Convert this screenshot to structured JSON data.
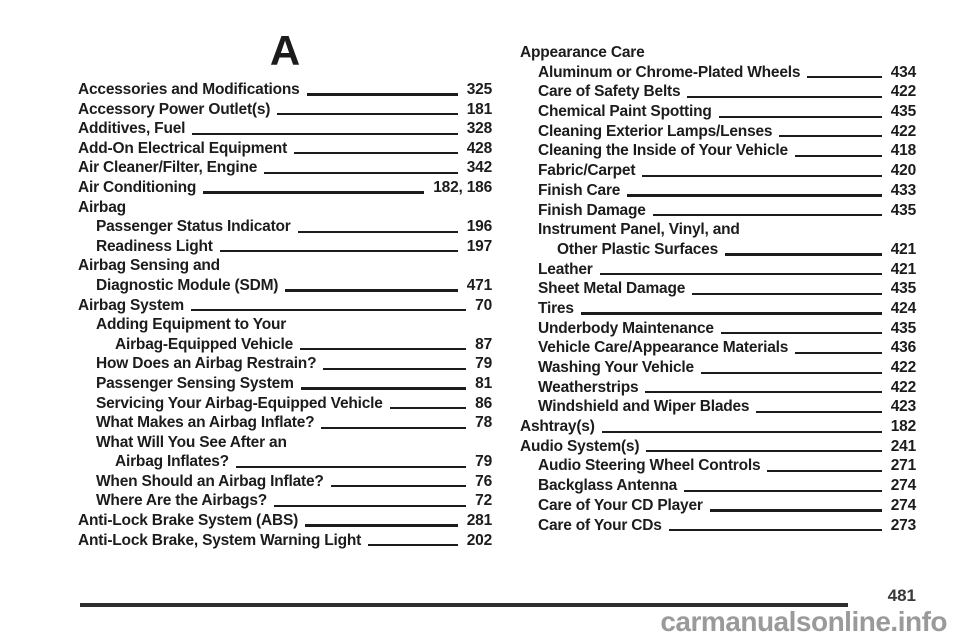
{
  "page": {
    "section_letter": "A",
    "page_number": "481",
    "watermark": "carmanualsonline.info"
  },
  "index": {
    "left_column": [
      {
        "label": "Accessories and Modifications",
        "page": "325",
        "indent": 0
      },
      {
        "label": "Accessory Power Outlet(s)",
        "page": "181",
        "indent": 0
      },
      {
        "label": "Additives, Fuel",
        "page": "328",
        "indent": 0
      },
      {
        "label": "Add-On Electrical Equipment",
        "page": "428",
        "indent": 0
      },
      {
        "label": "Air Cleaner/Filter, Engine",
        "page": "342",
        "indent": 0
      },
      {
        "label": "Air Conditioning",
        "page": "182, 186",
        "indent": 0
      },
      {
        "label": "Airbag",
        "page": null,
        "indent": 0
      },
      {
        "label": "Passenger Status Indicator",
        "page": "196",
        "indent": 1
      },
      {
        "label": "Readiness Light",
        "page": "197",
        "indent": 1
      },
      {
        "label": "Airbag Sensing and",
        "page": null,
        "indent": 0
      },
      {
        "label": "Diagnostic Module (SDM)",
        "page": "471",
        "indent": 1
      },
      {
        "label": "Airbag System",
        "page": "70",
        "indent": 0
      },
      {
        "label": "Adding Equipment to Your",
        "page": null,
        "indent": 1
      },
      {
        "label": "Airbag-Equipped Vehicle",
        "page": "87",
        "indent": 2
      },
      {
        "label": "How Does an Airbag Restrain?",
        "page": "79",
        "indent": 1
      },
      {
        "label": "Passenger Sensing System",
        "page": "81",
        "indent": 1
      },
      {
        "label": "Servicing Your Airbag-Equipped Vehicle",
        "page": "86",
        "indent": 1
      },
      {
        "label": "What Makes an Airbag Inflate?",
        "page": "78",
        "indent": 1
      },
      {
        "label": "What Will You See After an",
        "page": null,
        "indent": 1
      },
      {
        "label": "Airbag Inflates?",
        "page": "79",
        "indent": 2
      },
      {
        "label": "When Should an Airbag Inflate?",
        "page": "76",
        "indent": 1
      },
      {
        "label": "Where Are the Airbags?",
        "page": "72",
        "indent": 1
      },
      {
        "label": "Anti-Lock Brake System (ABS)",
        "page": "281",
        "indent": 0
      },
      {
        "label": "Anti-Lock Brake, System Warning Light",
        "page": "202",
        "indent": 0
      }
    ],
    "right_column": [
      {
        "label": "Appearance Care",
        "page": null,
        "indent": 0
      },
      {
        "label": "Aluminum or Chrome-Plated Wheels",
        "page": "434",
        "indent": 1
      },
      {
        "label": "Care of Safety Belts",
        "page": "422",
        "indent": 1
      },
      {
        "label": "Chemical Paint Spotting",
        "page": "435",
        "indent": 1
      },
      {
        "label": "Cleaning Exterior Lamps/Lenses",
        "page": "422",
        "indent": 1
      },
      {
        "label": "Cleaning the Inside of Your Vehicle",
        "page": "418",
        "indent": 1
      },
      {
        "label": "Fabric/Carpet",
        "page": "420",
        "indent": 1
      },
      {
        "label": "Finish Care",
        "page": "433",
        "indent": 1
      },
      {
        "label": "Finish Damage",
        "page": "435",
        "indent": 1
      },
      {
        "label": "Instrument Panel, Vinyl, and",
        "page": null,
        "indent": 1
      },
      {
        "label": "Other Plastic Surfaces",
        "page": "421",
        "indent": 2
      },
      {
        "label": "Leather",
        "page": "421",
        "indent": 1
      },
      {
        "label": "Sheet Metal Damage",
        "page": "435",
        "indent": 1
      },
      {
        "label": "Tires",
        "page": "424",
        "indent": 1
      },
      {
        "label": "Underbody Maintenance",
        "page": "435",
        "indent": 1
      },
      {
        "label": "Vehicle Care/Appearance Materials",
        "page": "436",
        "indent": 1
      },
      {
        "label": "Washing Your Vehicle",
        "page": "422",
        "indent": 1
      },
      {
        "label": "Weatherstrips",
        "page": "422",
        "indent": 1
      },
      {
        "label": "Windshield and Wiper Blades",
        "page": "423",
        "indent": 1
      },
      {
        "label": "Ashtray(s)",
        "page": "182",
        "indent": 0
      },
      {
        "label": "Audio System(s)",
        "page": "241",
        "indent": 0
      },
      {
        "label": "Audio Steering Wheel Controls",
        "page": "271",
        "indent": 1
      },
      {
        "label": "Backglass Antenna",
        "page": "274",
        "indent": 1
      },
      {
        "label": "Care of Your CD Player",
        "page": "274",
        "indent": 1
      },
      {
        "label": "Care of Your CDs",
        "page": "273",
        "indent": 1
      }
    ]
  }
}
